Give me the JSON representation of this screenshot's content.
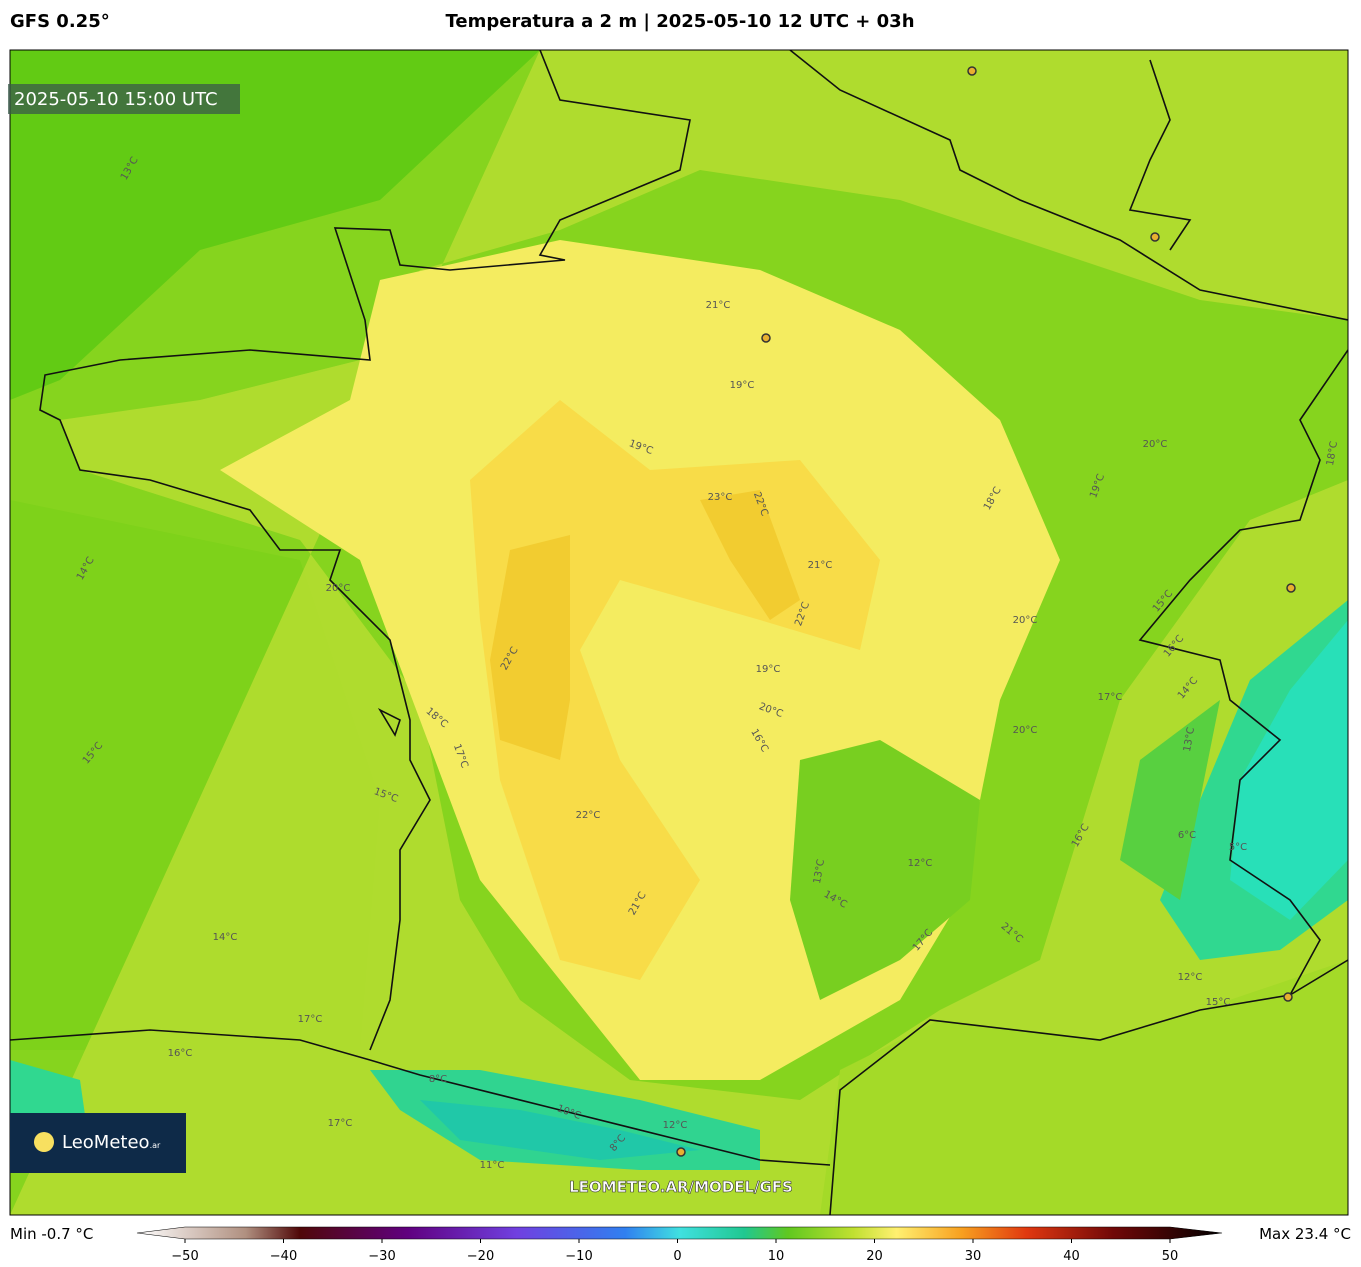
{
  "header": {
    "model": "GFS 0.25°",
    "title": "Temperatura a 2 m | 2025-05-10 12 UTC + 03h"
  },
  "map": {
    "valid_time": "2025-05-10 15:00 UTC",
    "logo": "LeoMeteo",
    "logo_suffix": ".ar",
    "watermark": "LEOMETEO.AR/MODEL/GFS",
    "contour_labels": [
      "21°C",
      "19°C",
      "19°C",
      "23°C",
      "22°C",
      "21°C",
      "22°C",
      "22°C",
      "22°C",
      "21°C",
      "20°C",
      "19°C",
      "20°C",
      "18°C",
      "17°C",
      "16°C",
      "15°C",
      "14°C",
      "13°C",
      "12°C",
      "14°C",
      "17°C",
      "20°C",
      "21°C",
      "20°C",
      "18°C",
      "19°C",
      "20°C",
      "17°C",
      "15°C",
      "16°C",
      "14°C",
      "13°C",
      "12°C",
      "15°C",
      "8°C",
      "6°C",
      "5°C",
      "8°C",
      "11°C",
      "12°C",
      "10°C",
      "17°C",
      "16°C",
      "18°C",
      "15°C",
      "14°C",
      "17°C",
      "13°C",
      "16°C"
    ]
  },
  "colorbar": {
    "min_label": "Min -0.7 °C",
    "max_label": "Max 23.4 °C",
    "lim": [
      -50,
      50
    ],
    "ticks": [
      {
        "value": -50,
        "label": "−50"
      },
      {
        "value": -40,
        "label": "−40"
      },
      {
        "value": -30,
        "label": "−30"
      },
      {
        "value": -20,
        "label": "−20"
      },
      {
        "value": -10,
        "label": "−10"
      },
      0,
      10,
      20,
      30,
      40,
      50
    ]
  }
}
